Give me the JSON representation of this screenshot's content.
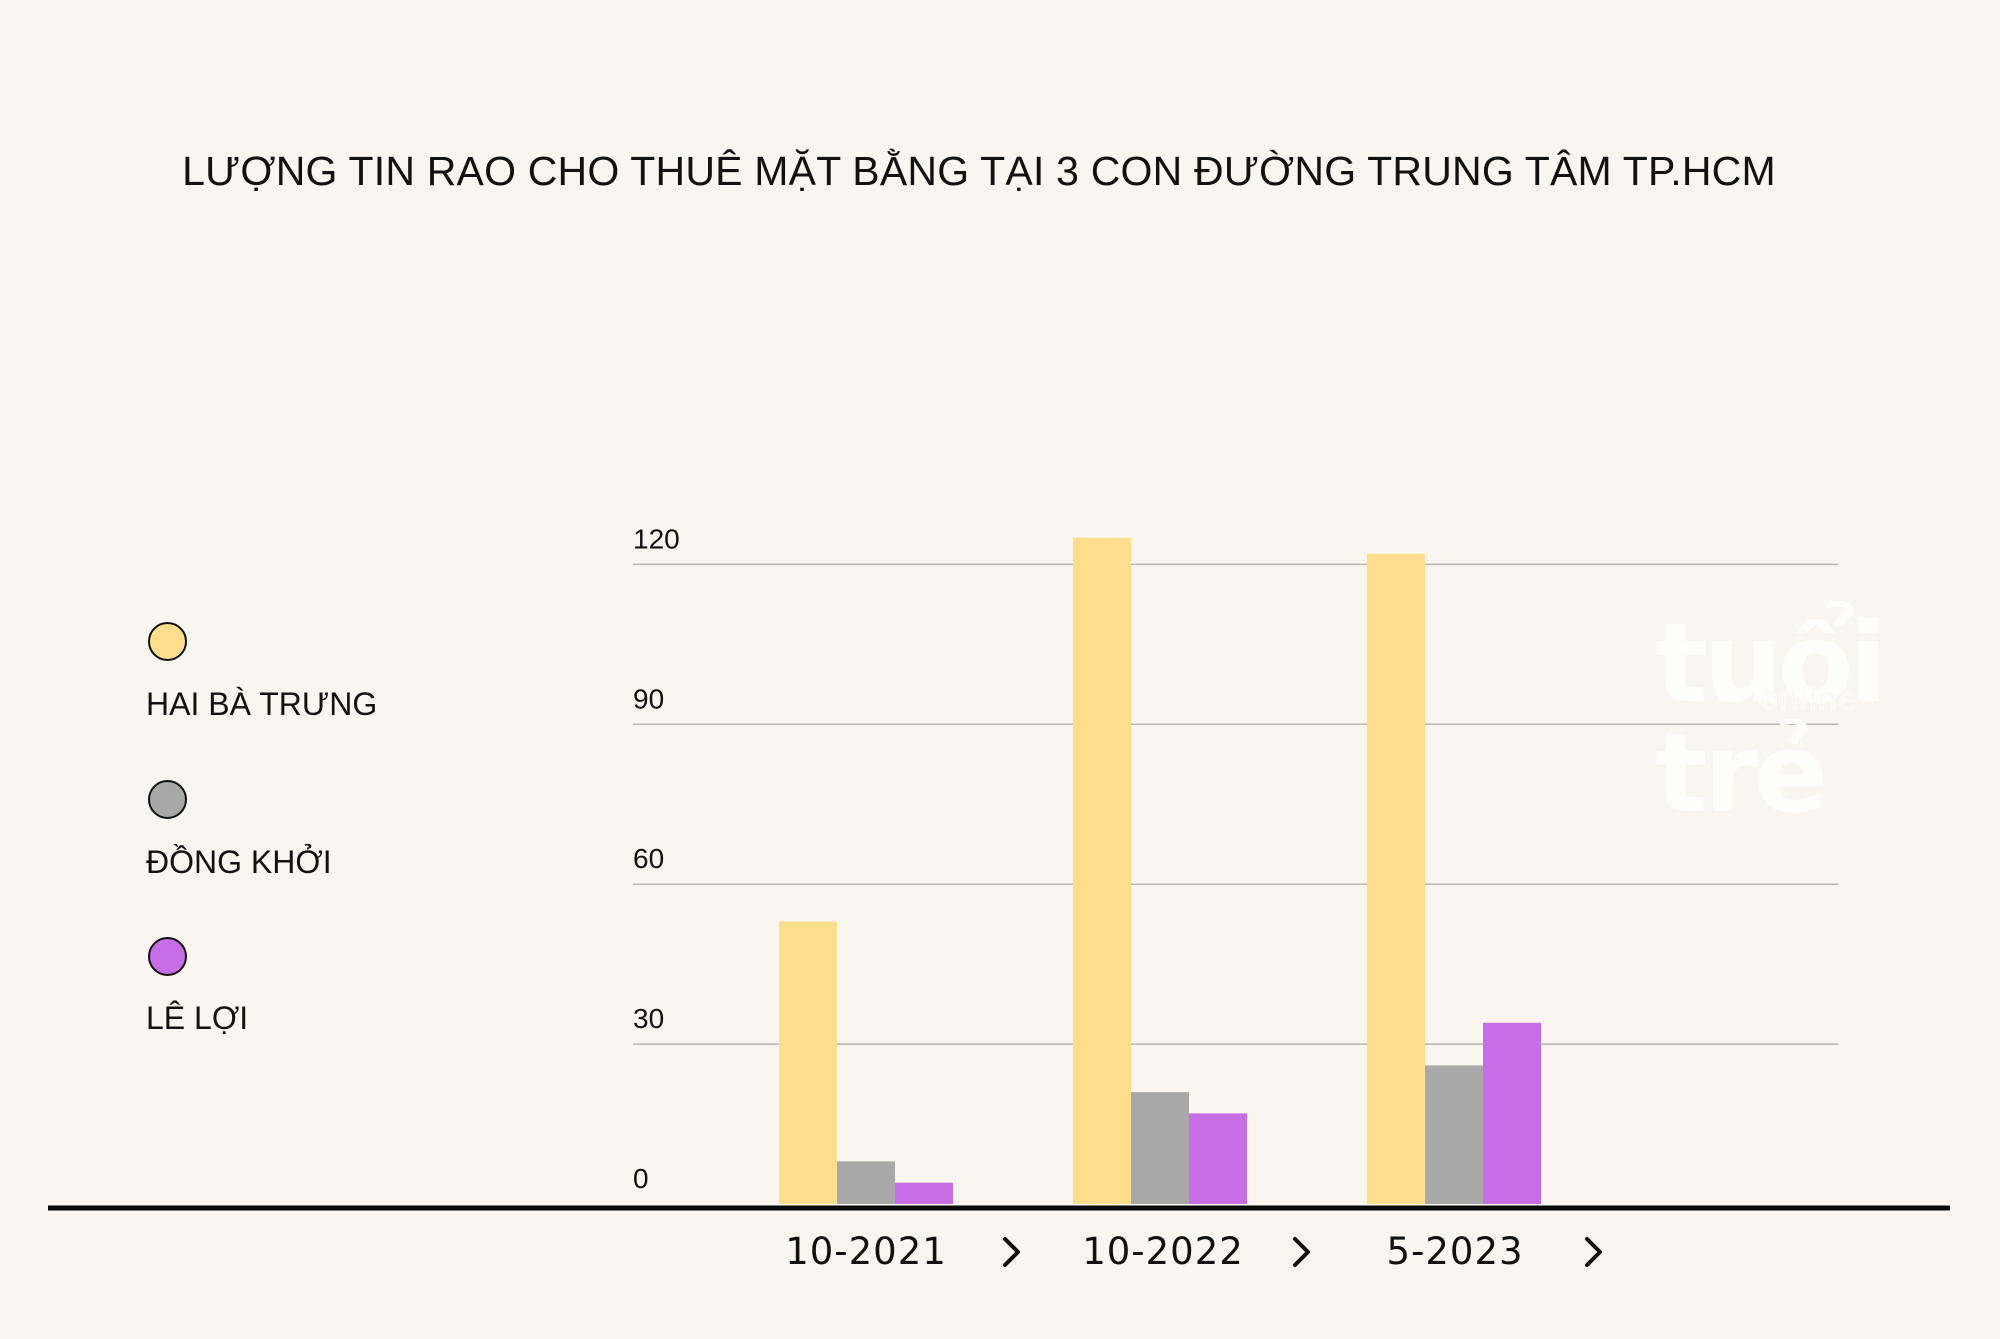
{
  "chart_data": {
    "type": "bar",
    "title": "LƯỢNG TIN RAO CHO THUÊ MẶT BẰNG TẠI 3 CON ĐƯỜNG TRUNG TÂM TP.HCM",
    "categories": [
      "10-2021",
      "10-2022",
      "5-2023"
    ],
    "series": [
      {
        "name": "HAI BÀ TRƯNG",
        "color": "#fedd8d",
        "values": [
          53,
          125,
          122
        ]
      },
      {
        "name": "ĐỒNG KHỞI",
        "color": "#a8a8a8",
        "values": [
          8,
          21,
          26
        ]
      },
      {
        "name": "LÊ LỢI",
        "color": "#c76de6",
        "values": [
          4,
          17,
          34
        ]
      }
    ],
    "yticks": [
      0,
      30,
      60,
      90,
      120
    ],
    "ylim": [
      0,
      130
    ],
    "grid": true,
    "legend_position": "left",
    "xlabel": "",
    "ylabel": "",
    "category_marker": "›"
  },
  "legend_dot_borders": "#111111",
  "watermark": {
    "main": "tuổi trẻ",
    "sub": "online"
  }
}
